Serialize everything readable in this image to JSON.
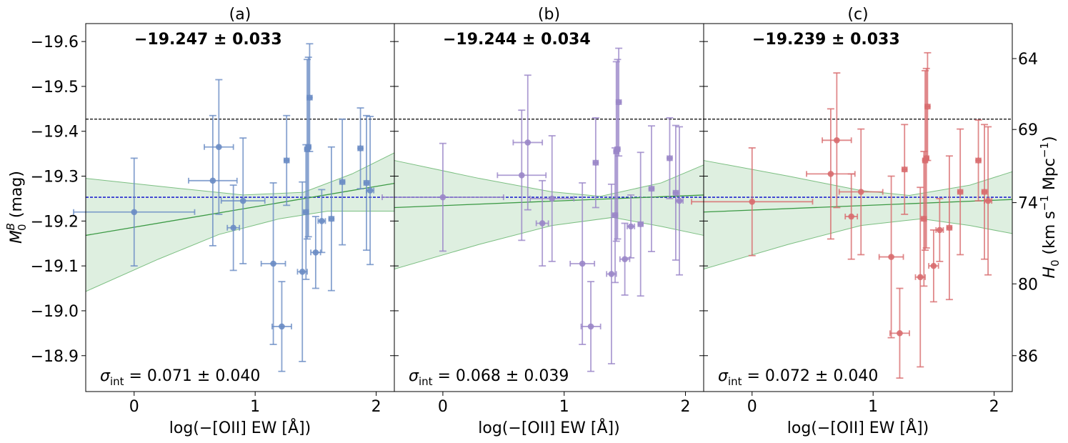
{
  "chart_data": {
    "type": "scatter",
    "y_axis": {
      "label_main": "M",
      "label_sup": "B",
      "label_sub": "0",
      "label_unit": " (mag)",
      "lim": [
        -18.82,
        -19.64
      ],
      "ticks": [
        "-19.6",
        "-19.5",
        "-19.4",
        "-19.3",
        "-19.2",
        "-19.1",
        "-19.0",
        "-18.9"
      ],
      "tick_values": [
        -19.6,
        -19.5,
        -19.4,
        -19.3,
        -19.2,
        -19.1,
        -19.0,
        -18.9
      ]
    },
    "right_axis": {
      "label_main": "H",
      "label_sub": "0",
      "label_rest": " (km s",
      "label_sup": "−1",
      "label_rest2": " Mpc",
      "label_sup2": "−1",
      "label_close": ")",
      "ticks": [
        "64",
        "69",
        "74",
        "80",
        "86"
      ],
      "tick_mag": [
        -19.562,
        -19.404,
        -19.241,
        -19.06,
        -18.9
      ]
    },
    "x_axis": {
      "label": "log(−[OII] EW [Å])",
      "lim": [
        -0.4,
        2.15
      ],
      "ticks": [
        "0",
        "1",
        "2"
      ],
      "tick_values": [
        0,
        1,
        2
      ]
    },
    "reference_lines": {
      "black_y": -19.427,
      "blue_y": -19.253,
      "black_color": "#000000",
      "blue_color": "#0000cc"
    },
    "panels": [
      {
        "title": "(a)",
        "top_annotation": "−19.247 ± 0.033",
        "sigma_symbol": "σ",
        "sigma_sub": "int",
        "sigma_value": " = 0.071 ± 0.040",
        "color": "#6a8cc4",
        "fit": {
          "y_left": -19.168,
          "y_right": -19.284
        },
        "band_upper": [
          [
            -0.4,
            -19.295
          ],
          [
            0.4,
            -19.272
          ],
          [
            0.9,
            -19.258
          ],
          [
            1.4,
            -19.264
          ],
          [
            1.8,
            -19.305
          ],
          [
            2.15,
            -19.352
          ]
        ],
        "band_lower": [
          [
            -0.4,
            -19.043
          ],
          [
            0.2,
            -19.115
          ],
          [
            0.7,
            -19.17
          ],
          [
            1.2,
            -19.205
          ],
          [
            1.6,
            -19.222
          ],
          [
            2.15,
            -19.222
          ]
        ],
        "points": [
          {
            "x": 0.0,
            "y": -19.22,
            "xerr": 0.5,
            "yerr": 0.12
          },
          {
            "x": 0.65,
            "y": -19.29,
            "xerr": 0.2,
            "yerr": 0.145
          },
          {
            "x": 0.7,
            "y": -19.365,
            "xerr": 0.12,
            "yerr": 0.15
          },
          {
            "x": 0.82,
            "y": -19.185,
            "xerr": 0.05,
            "yerr": 0.095
          },
          {
            "x": 0.9,
            "y": -19.245,
            "xerr": 0.18,
            "yerr": 0.14
          },
          {
            "x": 1.15,
            "y": -19.105,
            "xerr": 0.1,
            "yerr": 0.18
          },
          {
            "x": 1.22,
            "y": -18.965,
            "xerr": 0.08,
            "yerr": 0.1
          },
          {
            "x": 1.26,
            "y": -19.335,
            "xerr": 0.02,
            "yerr": 0.1
          },
          {
            "x": 1.39,
            "y": -19.087,
            "xerr": 0.04,
            "yerr": 0.2
          },
          {
            "x": 1.42,
            "y": -19.22,
            "xerr": 0.02,
            "yerr": 0.15
          },
          {
            "x": 1.43,
            "y": -19.36,
            "xerr": 0.02,
            "yerr": 0.2
          },
          {
            "x": 1.44,
            "y": -19.365,
            "xerr": 0.02,
            "yerr": 0.2
          },
          {
            "x": 1.45,
            "y": -19.475,
            "xerr": 0.02,
            "yerr": 0.12
          },
          {
            "x": 1.5,
            "y": -19.13,
            "xerr": 0.04,
            "yerr": 0.08
          },
          {
            "x": 1.55,
            "y": -19.2,
            "xerr": 0.03,
            "yerr": 0.07
          },
          {
            "x": 1.63,
            "y": -19.205,
            "xerr": 0.02,
            "yerr": 0.16
          },
          {
            "x": 1.72,
            "y": -19.287,
            "xerr": 0.02,
            "yerr": 0.14
          },
          {
            "x": 1.87,
            "y": -19.362,
            "xerr": 0.02,
            "yerr": 0.09
          },
          {
            "x": 1.92,
            "y": -19.285,
            "xerr": 0.02,
            "yerr": 0.15
          },
          {
            "x": 1.95,
            "y": -19.268,
            "xerr": 0.03,
            "yerr": 0.165
          }
        ]
      },
      {
        "title": "(b)",
        "top_annotation": "−19.244 ± 0.034",
        "sigma_symbol": "σ",
        "sigma_sub": "int",
        "sigma_value": " = 0.068 ± 0.039",
        "color": "#9a86c8",
        "fit": {
          "y_left": -19.23,
          "y_right": -19.258
        },
        "band_upper": [
          [
            -0.4,
            -19.335
          ],
          [
            0.3,
            -19.295
          ],
          [
            0.9,
            -19.265
          ],
          [
            1.3,
            -19.255
          ],
          [
            1.8,
            -19.285
          ],
          [
            2.15,
            -19.325
          ]
        ],
        "band_lower": [
          [
            -0.4,
            -19.093
          ],
          [
            0.3,
            -19.148
          ],
          [
            0.9,
            -19.19
          ],
          [
            1.4,
            -19.208
          ],
          [
            1.8,
            -19.188
          ],
          [
            2.15,
            -19.168
          ]
        ],
        "points": [
          {
            "x": 0.0,
            "y": -19.253,
            "xerr": 0.5,
            "yerr": 0.12
          },
          {
            "x": 0.65,
            "y": -19.302,
            "xerr": 0.2,
            "yerr": 0.145
          },
          {
            "x": 0.7,
            "y": -19.375,
            "xerr": 0.12,
            "yerr": 0.15
          },
          {
            "x": 0.82,
            "y": -19.195,
            "xerr": 0.05,
            "yerr": 0.095
          },
          {
            "x": 0.9,
            "y": -19.25,
            "xerr": 0.18,
            "yerr": 0.14
          },
          {
            "x": 1.15,
            "y": -19.105,
            "xerr": 0.1,
            "yerr": 0.18
          },
          {
            "x": 1.22,
            "y": -18.965,
            "xerr": 0.08,
            "yerr": 0.1
          },
          {
            "x": 1.26,
            "y": -19.33,
            "xerr": 0.02,
            "yerr": 0.1
          },
          {
            "x": 1.39,
            "y": -19.082,
            "xerr": 0.04,
            "yerr": 0.2
          },
          {
            "x": 1.42,
            "y": -19.213,
            "xerr": 0.02,
            "yerr": 0.15
          },
          {
            "x": 1.43,
            "y": -19.355,
            "xerr": 0.02,
            "yerr": 0.2
          },
          {
            "x": 1.44,
            "y": -19.36,
            "xerr": 0.02,
            "yerr": 0.2
          },
          {
            "x": 1.45,
            "y": -19.465,
            "xerr": 0.02,
            "yerr": 0.12
          },
          {
            "x": 1.5,
            "y": -19.115,
            "xerr": 0.04,
            "yerr": 0.08
          },
          {
            "x": 1.55,
            "y": -19.188,
            "xerr": 0.03,
            "yerr": 0.07
          },
          {
            "x": 1.63,
            "y": -19.193,
            "xerr": 0.02,
            "yerr": 0.16
          },
          {
            "x": 1.72,
            "y": -19.272,
            "xerr": 0.02,
            "yerr": 0.14
          },
          {
            "x": 1.87,
            "y": -19.34,
            "xerr": 0.02,
            "yerr": 0.09
          },
          {
            "x": 1.92,
            "y": -19.263,
            "xerr": 0.02,
            "yerr": 0.15
          },
          {
            "x": 1.95,
            "y": -19.245,
            "xerr": 0.03,
            "yerr": 0.165
          }
        ]
      },
      {
        "title": "(c)",
        "top_annotation": "−19.239 ± 0.033",
        "sigma_symbol": "σ",
        "sigma_sub": "int",
        "sigma_value": " = 0.072 ± 0.040",
        "color": "#d86c6e",
        "fit": {
          "y_left": -19.22,
          "y_right": -19.248
        },
        "band_upper": [
          [
            -0.4,
            -19.335
          ],
          [
            0.3,
            -19.3
          ],
          [
            0.9,
            -19.268
          ],
          [
            1.3,
            -19.257
          ],
          [
            1.8,
            -19.28
          ],
          [
            2.15,
            -19.31
          ]
        ],
        "band_lower": [
          [
            -0.4,
            -19.093
          ],
          [
            0.3,
            -19.148
          ],
          [
            0.9,
            -19.19
          ],
          [
            1.4,
            -19.205
          ],
          [
            1.8,
            -19.19
          ],
          [
            2.15,
            -19.172
          ]
        ],
        "points": [
          {
            "x": 0.0,
            "y": -19.243,
            "xerr": 0.5,
            "yerr": 0.12
          },
          {
            "x": 0.65,
            "y": -19.305,
            "xerr": 0.2,
            "yerr": 0.145
          },
          {
            "x": 0.7,
            "y": -19.38,
            "xerr": 0.12,
            "yerr": 0.15
          },
          {
            "x": 0.82,
            "y": -19.21,
            "xerr": 0.05,
            "yerr": 0.095
          },
          {
            "x": 0.9,
            "y": -19.265,
            "xerr": 0.18,
            "yerr": 0.14
          },
          {
            "x": 1.15,
            "y": -19.12,
            "xerr": 0.1,
            "yerr": 0.18
          },
          {
            "x": 1.22,
            "y": -18.95,
            "xerr": 0.08,
            "yerr": 0.1
          },
          {
            "x": 1.26,
            "y": -19.315,
            "xerr": 0.02,
            "yerr": 0.1
          },
          {
            "x": 1.39,
            "y": -19.075,
            "xerr": 0.04,
            "yerr": 0.2
          },
          {
            "x": 1.42,
            "y": -19.205,
            "xerr": 0.02,
            "yerr": 0.15
          },
          {
            "x": 1.43,
            "y": -19.335,
            "xerr": 0.02,
            "yerr": 0.2
          },
          {
            "x": 1.44,
            "y": -19.34,
            "xerr": 0.02,
            "yerr": 0.2
          },
          {
            "x": 1.45,
            "y": -19.455,
            "xerr": 0.02,
            "yerr": 0.12
          },
          {
            "x": 1.5,
            "y": -19.1,
            "xerr": 0.04,
            "yerr": 0.08
          },
          {
            "x": 1.55,
            "y": -19.18,
            "xerr": 0.03,
            "yerr": 0.07
          },
          {
            "x": 1.63,
            "y": -19.185,
            "xerr": 0.02,
            "yerr": 0.16
          },
          {
            "x": 1.72,
            "y": -19.265,
            "xerr": 0.02,
            "yerr": 0.14
          },
          {
            "x": 1.87,
            "y": -19.335,
            "xerr": 0.02,
            "yerr": 0.09
          },
          {
            "x": 1.92,
            "y": -19.265,
            "xerr": 0.02,
            "yerr": 0.15
          },
          {
            "x": 1.95,
            "y": -19.245,
            "xerr": 0.03,
            "yerr": 0.165
          }
        ]
      }
    ]
  }
}
